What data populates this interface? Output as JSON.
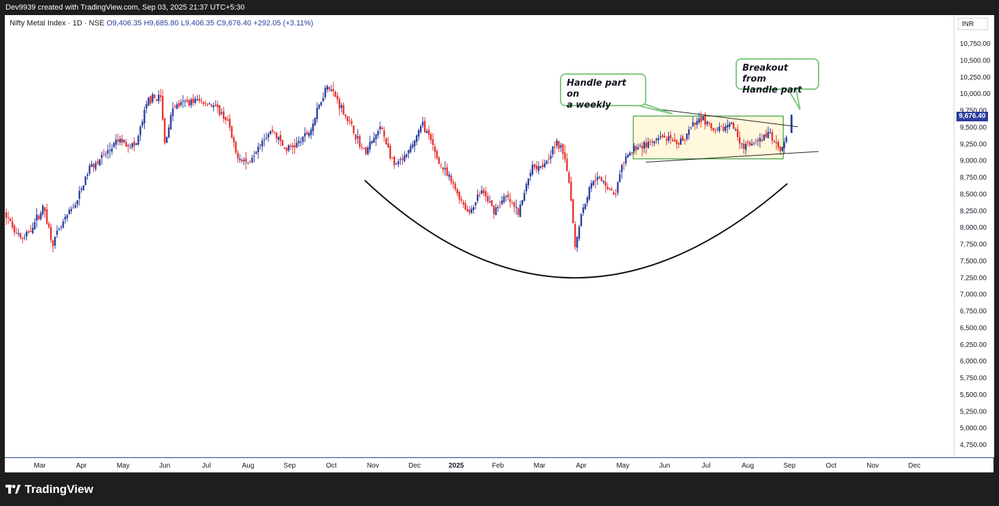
{
  "header": {
    "credit": "Dev9939 created with TradingView.com, Sep 03, 2025 21:37 UTC+5:30"
  },
  "legend": {
    "symbol": "Nifty Metal Index · 1D · NSE",
    "open": "O9,406.35",
    "high": "H9,685.80",
    "low": "L9,406.35",
    "close": "C9,676.40",
    "change": "+292.05 (+3.11%)"
  },
  "currency": "INR",
  "last_price_tag": "9,676.40",
  "brand": {
    "name": "TradingView",
    "logo_icon": "tradingview-logo-icon"
  },
  "annotations": {
    "handle_note": [
      "Handle part on",
      "a weekly"
    ],
    "breakout_note": [
      "Breakout from",
      "Handle part"
    ]
  },
  "colors": {
    "up": "#2a3d9e",
    "down": "#e8302f",
    "handle_box_fill": "#fff8dc",
    "handle_box_border": "#3c9c3c",
    "callout_border": "#7fc97f"
  },
  "chart_data": {
    "type": "candlestick",
    "title": "Nifty Metal Index · 1D · NSE",
    "ylim": [
      4600,
      10950
    ],
    "y_ticks": [
      "10,750.00",
      "10,500.00",
      "10,250.00",
      "10,000.00",
      "9,750.00",
      "9,500.00",
      "9,250.00",
      "9,000.00",
      "8,750.00",
      "8,500.00",
      "8,250.00",
      "8,000.00",
      "7,750.00",
      "7,500.00",
      "7,250.00",
      "7,000.00",
      "6,750.00",
      "6,500.00",
      "6,250.00",
      "6,000.00",
      "5,750.00",
      "5,500.00",
      "5,250.00",
      "5,000.00",
      "4,750.00"
    ],
    "y_tick_values": [
      10750,
      10500,
      10250,
      10000,
      9750,
      9500,
      9250,
      9000,
      8750,
      8500,
      8250,
      8000,
      7750,
      7500,
      7250,
      7000,
      6750,
      6500,
      6250,
      6000,
      5750,
      5500,
      5250,
      5000,
      4750
    ],
    "x_ticks": [
      "Mar",
      "Apr",
      "May",
      "Jun",
      "Jul",
      "Aug",
      "Sep",
      "Oct",
      "Nov",
      "Dec",
      "2025",
      "Feb",
      "Mar",
      "Apr",
      "May",
      "Jun",
      "Jul",
      "Aug",
      "Sep",
      "Oct",
      "Nov",
      "Dec"
    ],
    "x_tick_bold": [
      false,
      false,
      false,
      false,
      false,
      false,
      false,
      false,
      false,
      false,
      true,
      false,
      false,
      false,
      false,
      false,
      false,
      false,
      false,
      false,
      false,
      false
    ],
    "x_tick_index": [
      1,
      2,
      3,
      4,
      5,
      6,
      7,
      8,
      9,
      10,
      11,
      12,
      13,
      14,
      15,
      16,
      17,
      18,
      19,
      20,
      21,
      22
    ],
    "monthly_path": [
      {
        "m": 0.0,
        "p": 8450
      },
      {
        "m": 0.3,
        "p": 8050
      },
      {
        "m": 0.6,
        "p": 7800
      },
      {
        "m": 0.9,
        "p": 8100
      },
      {
        "m": 1.1,
        "p": 8300
      },
      {
        "m": 1.3,
        "p": 7750
      },
      {
        "m": 1.6,
        "p": 8100
      },
      {
        "m": 1.9,
        "p": 8400
      },
      {
        "m": 2.2,
        "p": 8900
      },
      {
        "m": 2.6,
        "p": 9100
      },
      {
        "m": 2.9,
        "p": 9300
      },
      {
        "m": 3.3,
        "p": 9200
      },
      {
        "m": 3.6,
        "p": 9900
      },
      {
        "m": 3.9,
        "p": 9950
      },
      {
        "m": 4.0,
        "p": 9250
      },
      {
        "m": 4.2,
        "p": 9800
      },
      {
        "m": 4.7,
        "p": 9900
      },
      {
        "m": 5.1,
        "p": 9850
      },
      {
        "m": 5.5,
        "p": 9600
      },
      {
        "m": 5.7,
        "p": 9100
      },
      {
        "m": 6.0,
        "p": 8950
      },
      {
        "m": 6.3,
        "p": 9300
      },
      {
        "m": 6.6,
        "p": 9450
      },
      {
        "m": 6.9,
        "p": 9150
      },
      {
        "m": 7.2,
        "p": 9250
      },
      {
        "m": 7.5,
        "p": 9450
      },
      {
        "m": 7.9,
        "p": 10150
      },
      {
        "m": 8.1,
        "p": 9950
      },
      {
        "m": 8.4,
        "p": 9600
      },
      {
        "m": 8.8,
        "p": 9100
      },
      {
        "m": 9.2,
        "p": 9500
      },
      {
        "m": 9.5,
        "p": 8900
      },
      {
        "m": 9.8,
        "p": 9050
      },
      {
        "m": 10.2,
        "p": 9550
      },
      {
        "m": 10.6,
        "p": 8950
      },
      {
        "m": 10.9,
        "p": 8650
      },
      {
        "m": 11.3,
        "p": 8200
      },
      {
        "m": 11.6,
        "p": 8550
      },
      {
        "m": 11.9,
        "p": 8250
      },
      {
        "m": 12.2,
        "p": 8450
      },
      {
        "m": 12.5,
        "p": 8200
      },
      {
        "m": 12.8,
        "p": 8900
      },
      {
        "m": 13.1,
        "p": 8950
      },
      {
        "m": 13.4,
        "p": 9250
      },
      {
        "m": 13.6,
        "p": 9100
      },
      {
        "m": 13.75,
        "p": 8500
      },
      {
        "m": 13.85,
        "p": 7700
      },
      {
        "m": 14.0,
        "p": 8200
      },
      {
        "m": 14.3,
        "p": 8750
      },
      {
        "m": 14.6,
        "p": 8650
      },
      {
        "m": 14.8,
        "p": 8450
      },
      {
        "m": 15.0,
        "p": 8950
      },
      {
        "m": 15.3,
        "p": 9200
      },
      {
        "m": 15.7,
        "p": 9250
      },
      {
        "m": 16.0,
        "p": 9350
      },
      {
        "m": 16.3,
        "p": 9200
      },
      {
        "m": 16.6,
        "p": 9450
      },
      {
        "m": 16.9,
        "p": 9650
      },
      {
        "m": 17.2,
        "p": 9400
      },
      {
        "m": 17.6,
        "p": 9550
      },
      {
        "m": 17.9,
        "p": 9200
      },
      {
        "m": 18.2,
        "p": 9250
      },
      {
        "m": 18.5,
        "p": 9400
      },
      {
        "m": 18.8,
        "p": 9150
      },
      {
        "m": 18.95,
        "p": 9400
      },
      {
        "m": 19.0,
        "p": 9676
      }
    ],
    "last_candle": {
      "open": 9406.35,
      "high": 9685.8,
      "low": 9406.35,
      "close": 9676.4
    },
    "handle_box": {
      "x0_month": 15.25,
      "x1_month": 18.85,
      "y_low": 9020,
      "y_high": 9660
    },
    "upper_trendline": {
      "x0_month": 15.75,
      "y0": 9770,
      "x1_month": 19.2,
      "y1": 9500
    },
    "lower_trendline": {
      "x0_month": 15.55,
      "y0": 8970,
      "x1_month": 19.7,
      "y1": 9130
    },
    "cup_arc": {
      "x0_month": 8.8,
      "y0": 8700,
      "xmid_month": 13.8,
      "ymid": 7240,
      "x1_month": 18.95,
      "y1": 8650
    }
  }
}
